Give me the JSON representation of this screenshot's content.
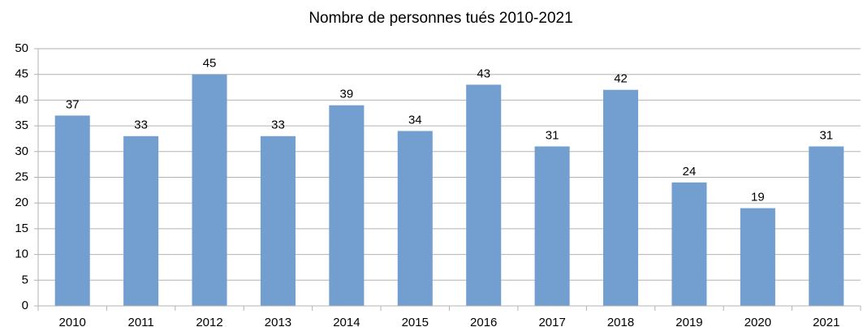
{
  "chart_data": {
    "type": "bar",
    "title": "Nombre de personnes tués 2010-2021",
    "categories": [
      "2010",
      "2011",
      "2012",
      "2013",
      "2014",
      "2015",
      "2016",
      "2017",
      "2018",
      "2019",
      "2020",
      "2021"
    ],
    "values": [
      37,
      33,
      45,
      33,
      39,
      34,
      43,
      31,
      42,
      24,
      19,
      31
    ],
    "color": "#729fcf",
    "ylim": [
      0,
      50
    ],
    "yticks": [
      0,
      5,
      10,
      15,
      20,
      25,
      30,
      35,
      40,
      45,
      50
    ],
    "grid": true
  }
}
